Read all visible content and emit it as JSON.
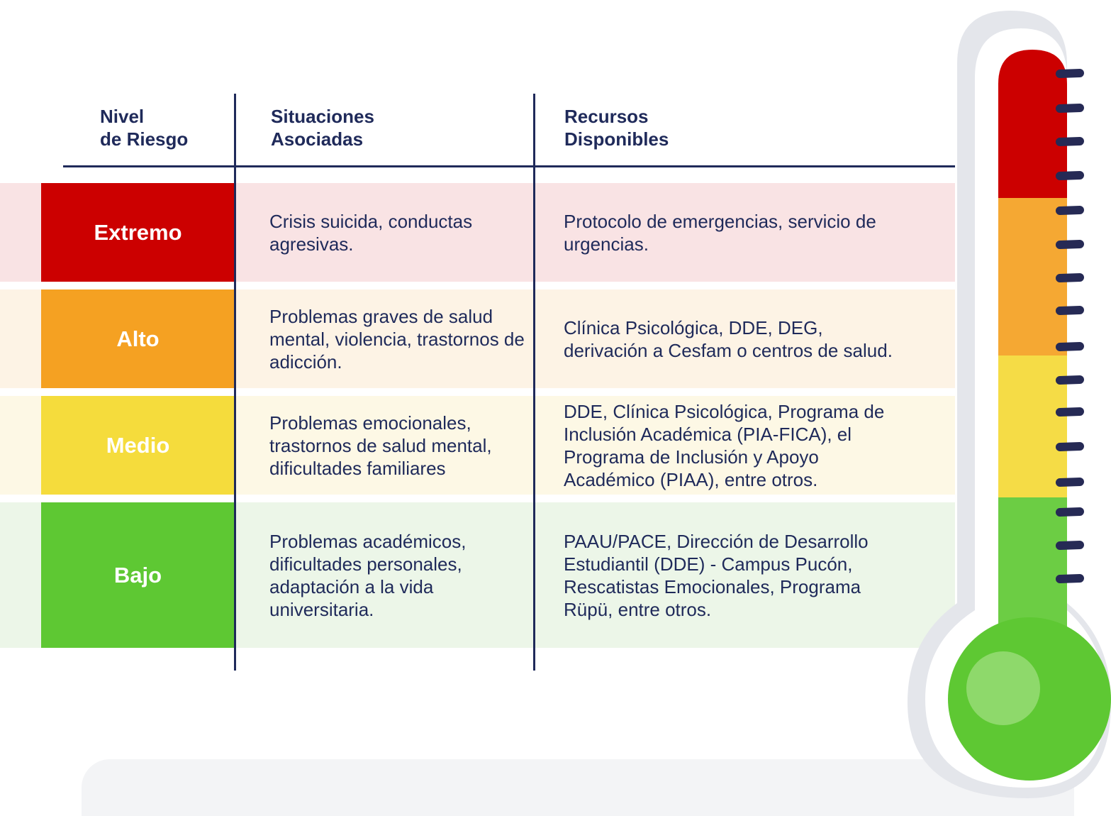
{
  "header": {
    "level": [
      "Nivel",
      "de Riesgo"
    ],
    "situations": [
      "Situaciones",
      "Asociadas"
    ],
    "resources": [
      "Recursos",
      "Disponibles"
    ]
  },
  "rows": [
    {
      "level": "Extremo",
      "situations": "Crisis suicida, conductas agresivas.",
      "resources": "Protocolo de emergencias, servicio de urgencias."
    },
    {
      "level": "Alto",
      "situations": "Problemas graves de salud mental, violencia, trastornos de adicción.",
      "resources": "Clínica Psicológica, DDE, DEG, derivación a Cesfam o centros de salud."
    },
    {
      "level": "Medio",
      "situations": "Problemas emocionales, trastornos de salud mental, dificultades familiares",
      "resources": "DDE, Clínica Psicológica, Programa de Inclusión Académica (PIA-FICA), el Programa de Inclusión y Apoyo Académico (PIAA), entre otros."
    },
    {
      "level": "Bajo",
      "situations": "Problemas académicos, dificultades personales, adaptación a la vida universitaria.",
      "resources": "PAAU/PACE, Dirección de Desarrollo Estudiantil (DDE) - Campus Pucón, Rescatistas Emocionales, Programa Rüpü, entre otros."
    }
  ]
}
